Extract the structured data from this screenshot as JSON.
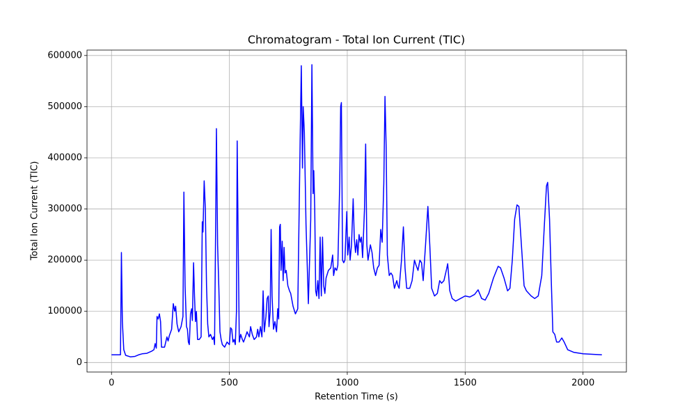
{
  "chart_data": {
    "type": "line",
    "title": "Chromatogram - Total Ion Current (TIC)",
    "xlabel": "Retention Time (s)",
    "ylabel": "Total Ion Current (TIC)",
    "xlim": [
      -104,
      2184
    ],
    "ylim": [
      -18600,
      610600
    ],
    "xticks": [
      0,
      500,
      1000,
      1500,
      2000
    ],
    "yticks": [
      0,
      100000,
      200000,
      300000,
      400000,
      500000,
      600000
    ],
    "grid": true,
    "x": [
      0,
      30,
      38,
      42,
      46,
      52,
      60,
      80,
      100,
      115,
      130,
      150,
      170,
      180,
      185,
      190,
      193,
      198,
      203,
      208,
      212,
      225,
      235,
      240,
      245,
      255,
      262,
      268,
      272,
      278,
      285,
      295,
      303,
      307,
      312,
      318,
      322,
      326,
      330,
      335,
      340,
      343,
      348,
      352,
      356,
      360,
      365,
      372,
      380,
      385,
      388,
      393,
      398,
      403,
      408,
      413,
      420,
      428,
      433,
      437,
      442,
      445,
      450,
      455,
      460,
      465,
      470,
      480,
      490,
      500,
      505,
      510,
      515,
      520,
      525,
      530,
      533,
      537,
      542,
      548,
      555,
      560,
      568,
      575,
      585,
      590,
      597,
      605,
      615,
      620,
      625,
      632,
      638,
      643,
      648,
      655,
      660,
      665,
      668,
      673,
      677,
      681,
      687,
      693,
      700,
      705,
      709,
      713,
      716,
      719,
      724,
      728,
      732,
      736,
      741,
      748,
      755,
      760,
      770,
      780,
      790,
      800,
      805,
      810,
      813,
      818,
      825,
      835,
      845,
      850,
      855,
      858,
      862,
      866,
      870,
      875,
      880,
      885,
      890,
      895,
      900,
      905,
      910,
      920,
      930,
      938,
      942,
      948,
      955,
      960,
      968,
      972,
      975,
      980,
      985,
      990,
      998,
      1002,
      1008,
      1012,
      1018,
      1025,
      1030,
      1035,
      1040,
      1045,
      1050,
      1055,
      1060,
      1065,
      1073,
      1078,
      1083,
      1088,
      1093,
      1098,
      1105,
      1112,
      1120,
      1128,
      1135,
      1142,
      1148,
      1155,
      1160,
      1165,
      1170,
      1178,
      1185,
      1192,
      1200,
      1210,
      1215,
      1220,
      1230,
      1238,
      1245,
      1252,
      1265,
      1275,
      1285,
      1292,
      1300,
      1308,
      1315,
      1322,
      1332,
      1342,
      1350,
      1358,
      1370,
      1382,
      1392,
      1400,
      1410,
      1420,
      1426,
      1435,
      1445,
      1460,
      1480,
      1500,
      1520,
      1540,
      1555,
      1570,
      1585,
      1600,
      1620,
      1640,
      1650,
      1665,
      1680,
      1690,
      1700,
      1710,
      1720,
      1728,
      1740,
      1750,
      1760,
      1780,
      1795,
      1810,
      1825,
      1835,
      1845,
      1850,
      1858,
      1866,
      1872,
      1880,
      1888,
      1898,
      1910,
      1920,
      1935,
      1960,
      2000,
      2040,
      2080
    ],
    "series": [
      {
        "name": "TIC",
        "color": "#0000ff",
        "values": [
          15000,
          15000,
          15000,
          215000,
          80000,
          25000,
          14000,
          11000,
          12000,
          15000,
          17000,
          18000,
          22000,
          25000,
          37000,
          28000,
          90000,
          85000,
          95000,
          80000,
          30000,
          30000,
          50000,
          42000,
          52000,
          65000,
          115000,
          100000,
          110000,
          75000,
          60000,
          70000,
          90000,
          333000,
          150000,
          70000,
          65000,
          40000,
          35000,
          95000,
          105000,
          82000,
          195000,
          130000,
          80000,
          100000,
          45000,
          45000,
          50000,
          275000,
          255000,
          355000,
          300000,
          150000,
          75000,
          50000,
          55000,
          45000,
          50000,
          35000,
          280000,
          457000,
          230000,
          150000,
          60000,
          45000,
          35000,
          30000,
          40000,
          35000,
          68000,
          65000,
          40000,
          45000,
          35000,
          100000,
          433000,
          250000,
          40000,
          55000,
          45000,
          40000,
          50000,
          60000,
          50000,
          70000,
          55000,
          45000,
          50000,
          65000,
          50000,
          70000,
          50000,
          140000,
          60000,
          90000,
          125000,
          130000,
          70000,
          100000,
          260000,
          130000,
          65000,
          80000,
          60000,
          105000,
          85000,
          265000,
          270000,
          180000,
          237000,
          160000,
          225000,
          175000,
          180000,
          150000,
          140000,
          135000,
          110000,
          95000,
          105000,
          430000,
          580000,
          380000,
          500000,
          450000,
          270000,
          115000,
          280000,
          582000,
          330000,
          375000,
          300000,
          140000,
          130000,
          160000,
          125000,
          245000,
          130000,
          245000,
          150000,
          135000,
          165000,
          180000,
          185000,
          210000,
          170000,
          185000,
          180000,
          190000,
          350000,
          500000,
          508000,
          200000,
          195000,
          200000,
          295000,
          210000,
          245000,
          200000,
          230000,
          320000,
          240000,
          215000,
          240000,
          210000,
          250000,
          235000,
          245000,
          205000,
          300000,
          427000,
          230000,
          200000,
          215000,
          230000,
          215000,
          185000,
          170000,
          185000,
          190000,
          260000,
          235000,
          350000,
          520000,
          420000,
          210000,
          170000,
          175000,
          170000,
          145000,
          160000,
          150000,
          145000,
          200000,
          265000,
          185000,
          145000,
          145000,
          160000,
          200000,
          190000,
          180000,
          200000,
          195000,
          160000,
          230000,
          305000,
          230000,
          145000,
          130000,
          135000,
          160000,
          155000,
          160000,
          180000,
          193000,
          140000,
          125000,
          120000,
          125000,
          130000,
          128000,
          133000,
          142000,
          125000,
          122000,
          135000,
          165000,
          188000,
          185000,
          165000,
          140000,
          145000,
          200000,
          280000,
          308000,
          305000,
          220000,
          150000,
          140000,
          130000,
          125000,
          130000,
          170000,
          260000,
          345000,
          352000,
          280000,
          150000,
          60000,
          55000,
          40000,
          40000,
          48000,
          40000,
          25000,
          20000,
          17000,
          16000,
          15000
        ]
      }
    ]
  }
}
